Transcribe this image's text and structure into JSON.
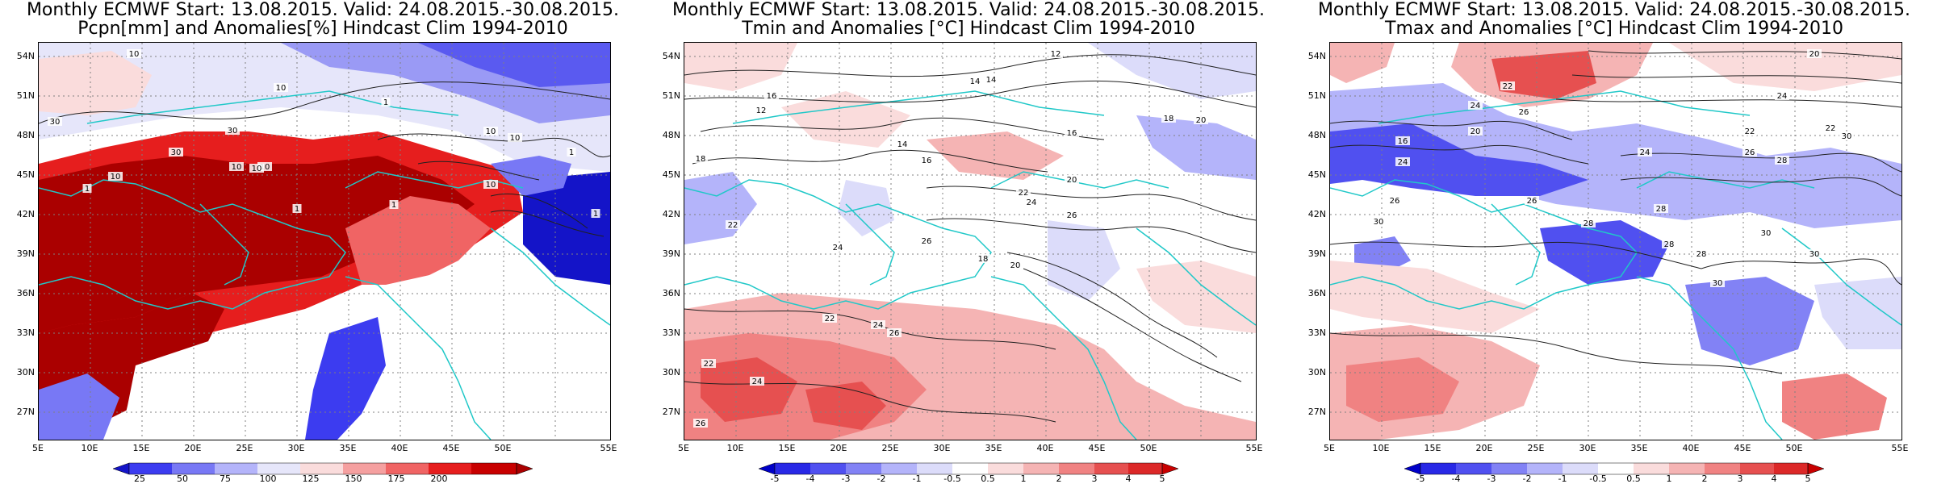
{
  "panels": [
    {
      "title1": "Monthly ECMWF Start: 13.08.2015. Valid: 24.08.2015.-30.08.2015.",
      "title2": "Pcpn[mm] and Anomalies[%] Hindcast Clim 1994-2010",
      "lat_labels": [
        "54N",
        "51N",
        "48N",
        "45N",
        "42N",
        "39N",
        "36N",
        "33N",
        "30N",
        "27N"
      ],
      "lon_labels": [
        "5E",
        "10E",
        "15E",
        "20E",
        "25E",
        "30E",
        "35E",
        "40E",
        "45E",
        "50E",
        "55E"
      ],
      "colorbar": {
        "labels": [
          "25",
          "50",
          "75",
          "100",
          "125",
          "150",
          "175",
          "200"
        ],
        "colors": [
          "#1414c8",
          "#3c3cf0",
          "#7878f5",
          "#b4b4fa",
          "#e6e6fa",
          "#ffffff",
          "#fadcdc",
          "#f5a0a0",
          "#f06464",
          "#e61e1e",
          "#aa0000"
        ]
      },
      "contour_labels": [
        "10",
        "10",
        "1",
        "30",
        "10",
        "30",
        "10",
        "30",
        "1",
        "10",
        "10",
        "10",
        "10",
        "1",
        "1",
        "10",
        "1",
        "1"
      ]
    },
    {
      "title1": "Monthly ECMWF Start: 13.08.2015. Valid: 24.08.2015.-30.08.2015.",
      "title2": "Tmin and Anomalies [°C] Hindcast Clim 1994-2010",
      "lat_labels": [
        "54N",
        "51N",
        "48N",
        "45N",
        "42N",
        "39N",
        "36N",
        "33N",
        "30N",
        "27N"
      ],
      "lon_labels": [
        "5E",
        "10E",
        "15E",
        "20E",
        "25E",
        "30E",
        "35E",
        "40E",
        "45E",
        "50E",
        "55E"
      ],
      "colorbar": {
        "labels": [
          "-5",
          "-4",
          "-3",
          "-2",
          "-1",
          "-0.5",
          "0.5",
          "1",
          "2",
          "3",
          "4",
          "5"
        ],
        "colors": [
          "#0000c8",
          "#2828e6",
          "#5050f0",
          "#8282f5",
          "#b4b4fa",
          "#dcdcfa",
          "#ffffff",
          "#fadcdc",
          "#f5b4b4",
          "#f08282",
          "#e65050",
          "#dc2828",
          "#c80000"
        ]
      },
      "contour_labels": [
        "12",
        "14",
        "14",
        "16",
        "12",
        "18",
        "20",
        "16",
        "14",
        "16",
        "18",
        "20",
        "22",
        "24",
        "26",
        "22",
        "24",
        "26",
        "18",
        "20",
        "22",
        "24",
        "26",
        "22",
        "24",
        "26"
      ]
    },
    {
      "title1": "Monthly ECMWF Start: 13.08.2015. Valid: 24.08.2015.-30.08.2015.",
      "title2": "Tmax and Anomalies [°C] Hindcast Clim 1994-2010",
      "lat_labels": [
        "54N",
        "51N",
        "48N",
        "45N",
        "42N",
        "39N",
        "36N",
        "33N",
        "30N",
        "27N"
      ],
      "lon_labels": [
        "5E",
        "10E",
        "15E",
        "20E",
        "25E",
        "30E",
        "35E",
        "40E",
        "45E",
        "50E",
        "55E"
      ],
      "colorbar": {
        "labels": [
          "-5",
          "-4",
          "-3",
          "-2",
          "-1",
          "-0.5",
          "0.5",
          "1",
          "2",
          "3",
          "4",
          "5"
        ],
        "colors": [
          "#0000c8",
          "#2828e6",
          "#5050f0",
          "#8282f5",
          "#b4b4fa",
          "#dcdcfa",
          "#ffffff",
          "#fadcdc",
          "#f5b4b4",
          "#f08282",
          "#e65050",
          "#dc2828",
          "#c80000"
        ]
      },
      "contour_labels": [
        "20",
        "22",
        "24",
        "22",
        "24",
        "26",
        "20",
        "22",
        "16",
        "24",
        "26",
        "28",
        "30",
        "24",
        "26",
        "28",
        "30",
        "28",
        "30",
        "26",
        "28",
        "30",
        "28",
        "30"
      ]
    }
  ]
}
